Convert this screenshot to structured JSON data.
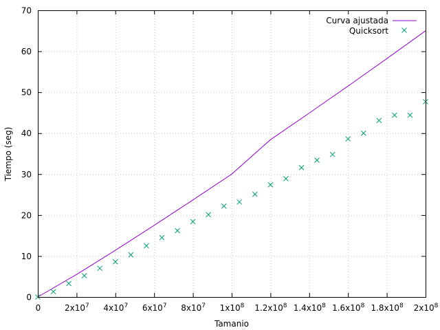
{
  "chart_data": {
    "type": "scatter",
    "xlabel": "Tamanio",
    "ylabel": "Tiempo (seg)",
    "xlim": [
      0,
      200000000
    ],
    "ylim": [
      0,
      70
    ],
    "grid": true,
    "legend_position": "top-right",
    "x_ticks": [
      {
        "value": 0,
        "base": "0",
        "exp": ""
      },
      {
        "value": 20000000,
        "base": "2x10",
        "exp": "7"
      },
      {
        "value": 40000000,
        "base": "4x10",
        "exp": "7"
      },
      {
        "value": 60000000,
        "base": "6x10",
        "exp": "7"
      },
      {
        "value": 80000000,
        "base": "8x10",
        "exp": "7"
      },
      {
        "value": 100000000,
        "base": "1x10",
        "exp": "8"
      },
      {
        "value": 120000000,
        "base": "1.2x10",
        "exp": "8"
      },
      {
        "value": 140000000,
        "base": "1.4x10",
        "exp": "8"
      },
      {
        "value": 160000000,
        "base": "1.6x10",
        "exp": "8"
      },
      {
        "value": 180000000,
        "base": "1.8x10",
        "exp": "8"
      },
      {
        "value": 200000000,
        "base": "2x10",
        "exp": "8"
      }
    ],
    "y_ticks": [
      0,
      10,
      20,
      30,
      40,
      50,
      60,
      70
    ],
    "series": [
      {
        "name": "Curva ajustada",
        "kind": "line",
        "color": "#9400d3",
        "x": [
          0,
          20000000,
          40000000,
          60000000,
          80000000,
          100000000,
          120000000,
          140000000,
          160000000,
          180000000,
          200000000
        ],
        "y": [
          0,
          5.5,
          11.4,
          17.5,
          23.7,
          30.0,
          38.4,
          44.9,
          51.5,
          58.2,
          65.0
        ]
      },
      {
        "name": "Quicksort",
        "kind": "scatter",
        "color": "#009e73",
        "x": [
          0,
          8000000,
          16000000,
          24000000,
          32000000,
          40000000,
          48000000,
          56000000,
          64000000,
          72000000,
          80000000,
          88000000,
          96000000,
          104000000,
          112000000,
          120000000,
          128000000,
          136000000,
          144000000,
          152000000,
          160000000,
          168000000,
          176000000,
          184000000,
          192000000,
          200000000
        ],
        "y": [
          0,
          1.3,
          3.3,
          5.2,
          7.0,
          8.6,
          10.3,
          12.5,
          14.5,
          16.2,
          18.4,
          20.1,
          22.2,
          23.2,
          25.1,
          27.4,
          28.9,
          31.6,
          33.4,
          34.8,
          38.6,
          40.0,
          43.1,
          44.4,
          44.4,
          47.7
        ]
      }
    ]
  }
}
